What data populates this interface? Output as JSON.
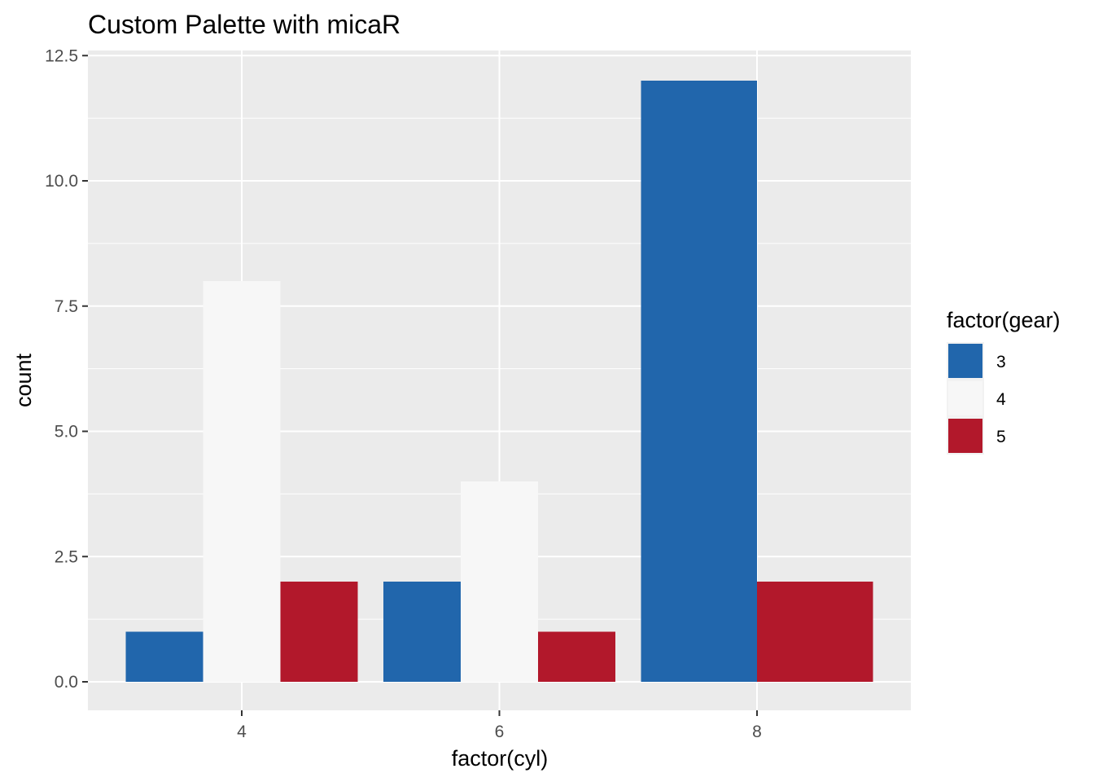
{
  "chart_data": {
    "type": "bar",
    "title": "Custom Palette with micaR",
    "xlabel": "factor(cyl)",
    "ylabel": "count",
    "categories": [
      "4",
      "6",
      "8"
    ],
    "ylim": [
      -0.6,
      12.5
    ],
    "yticks": [
      0.0,
      2.5,
      5.0,
      7.5,
      10.0,
      12.5
    ],
    "ytick_labels": [
      "0.0",
      "2.5",
      "5.0",
      "7.5",
      "10.0",
      "12.5"
    ],
    "grid": true,
    "legend_position": "right",
    "legend_title": "factor(gear)",
    "series": [
      {
        "name": "3",
        "color": "#2166AC",
        "values": [
          1,
          2,
          12
        ]
      },
      {
        "name": "4",
        "color": "#F7F7F7",
        "values": [
          8,
          4,
          null
        ]
      },
      {
        "name": "5",
        "color": "#B2182B",
        "values": [
          2,
          1,
          2
        ]
      }
    ],
    "panel_color": "#EBEBEB"
  }
}
